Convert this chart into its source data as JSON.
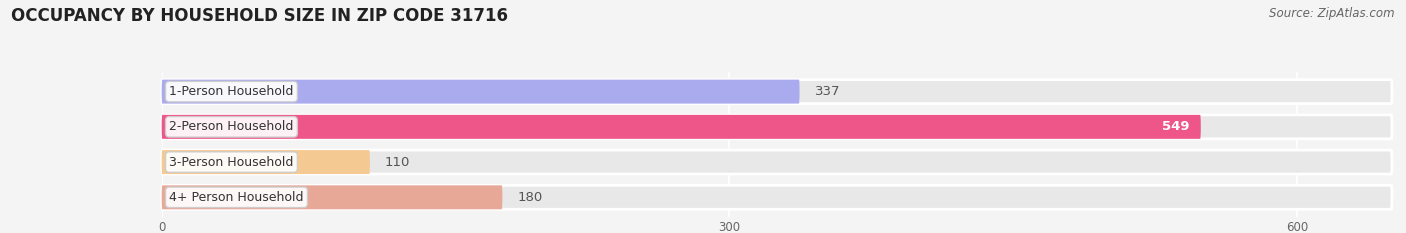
{
  "title": "OCCUPANCY BY HOUSEHOLD SIZE IN ZIP CODE 31716",
  "source": "Source: ZipAtlas.com",
  "categories": [
    "1-Person Household",
    "2-Person Household",
    "3-Person Household",
    "4+ Person Household"
  ],
  "values": [
    337,
    549,
    110,
    180
  ],
  "bar_colors": [
    "#aaaaee",
    "#ee5588",
    "#f5c992",
    "#e8a898"
  ],
  "label_colors": [
    "#333333",
    "#ffffff",
    "#333333",
    "#333333"
  ],
  "background_color": "#f4f4f4",
  "bar_bg_color": "#e8e8e8",
  "xlim_max": 650,
  "xticks": [
    0,
    300,
    600
  ],
  "title_fontsize": 12,
  "source_fontsize": 8.5,
  "bar_label_fontsize": 9.5,
  "category_fontsize": 9
}
